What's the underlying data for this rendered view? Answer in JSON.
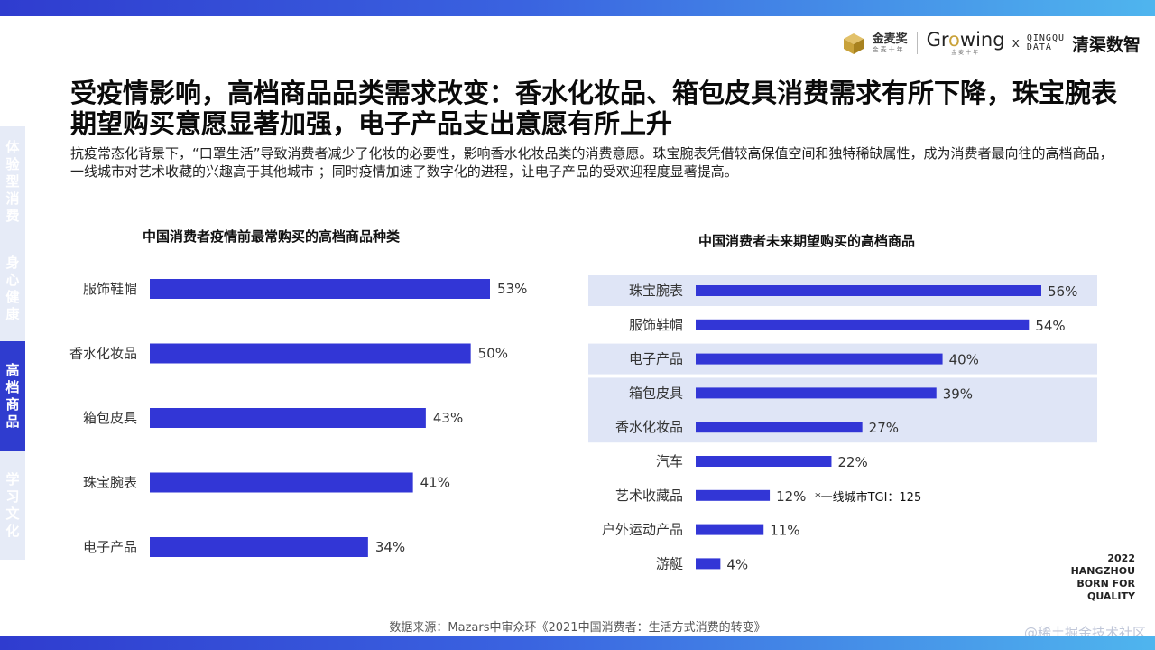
{
  "header": {
    "logo_jmj": "金麦奖",
    "logo_jmj_sub": "金麦十年",
    "logo_growing": "Growing",
    "logo_growing_sub": "金麦十年",
    "logo_x": "x",
    "logo_qingqu_line1": "QINGQU",
    "logo_qingqu_line2": "DATA",
    "logo_qingqu_cn": "清渠数智"
  },
  "title": "受疫情影响，高档商品品类需求改变：香水化妆品、箱包皮具消费需求有所下降，珠宝腕表期望购买意愿显著加强，电子产品支出意愿有所上升",
  "subtitle": "抗疫常态化背景下，“口罩生活”导致消费者减少了化妆的必要性，影响香水化妆品类的消费意愿。珠宝腕表凭借较高保值空间和独特稀缺属性，成为消费者最向往的高档商品，一线城市对艺术收藏的兴趣高于其他城市 ；同时疫情加速了数字化的进程，让电子产品的受欢迎程度显著提高。",
  "sidenav": [
    {
      "label": "体验型消费",
      "active": false
    },
    {
      "label": "身心健康",
      "active": false
    },
    {
      "label": "高档商品",
      "active": true
    },
    {
      "label": "学习文化",
      "active": false
    }
  ],
  "chart_data": [
    {
      "type": "bar",
      "orientation": "horizontal",
      "title": "中国消费者疫情前最常购买的高档商品种类",
      "categories": [
        "服饰鞋帽",
        "香水化妆品",
        "箱包皮具",
        "珠宝腕表",
        "电子产品"
      ],
      "values": [
        53,
        50,
        43,
        41,
        34
      ],
      "value_labels": [
        "53%",
        "50%",
        "43%",
        "41%",
        "34%"
      ],
      "unit": "%",
      "color": "#3236d6"
    },
    {
      "type": "bar",
      "orientation": "horizontal",
      "title": "中国消费者未来期望购买的高档商品",
      "categories": [
        "珠宝腕表",
        "服饰鞋帽",
        "电子产品",
        "箱包皮具",
        "香水化妆品",
        "汽车",
        "艺术收藏品",
        "户外运动产品",
        "游艇"
      ],
      "values": [
        56,
        54,
        40,
        39,
        27,
        22,
        12,
        11,
        4
      ],
      "value_labels": [
        "56%",
        "54%",
        "40%",
        "39%",
        "27%",
        "22%",
        "12%",
        "11%",
        "4%"
      ],
      "unit": "%",
      "color": "#3236d6",
      "highlight_groups": [
        [
          0
        ],
        [
          2
        ],
        [
          3,
          4
        ]
      ],
      "highlight_color": "#dfe5f6",
      "annotation": "*一线城市TGI：125",
      "annotation_category": "艺术收藏品"
    }
  ],
  "footer": {
    "source": "数据来源：Mazars中审众环《2021中国消费者：生活方式消费的转变》",
    "year_lines": [
      "2022",
      "HANGZHOU",
      "BORN FOR",
      "QUALITY"
    ],
    "watermark": "@稀土掘金技术社区"
  }
}
